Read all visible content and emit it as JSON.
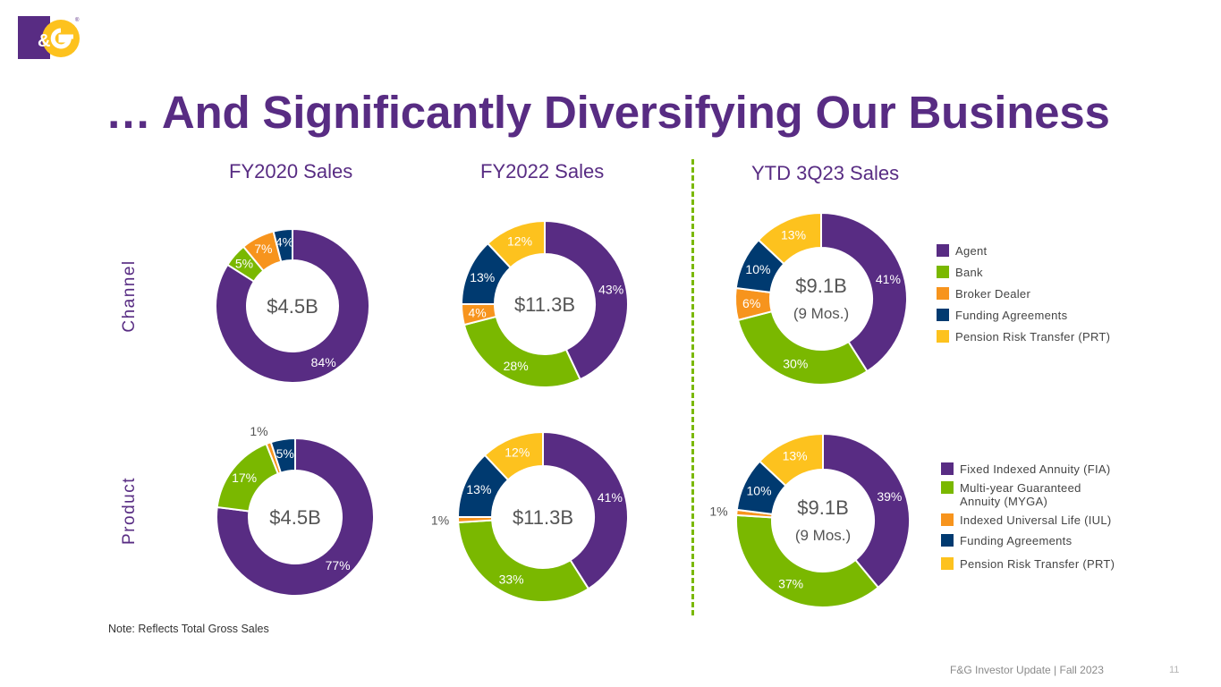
{
  "title": "… And Significantly Diversifying Our Business",
  "logo": {
    "alt": "F&G"
  },
  "column_headers": [
    "FY2020 Sales",
    "FY2022 Sales",
    "YTD 3Q23 Sales"
  ],
  "row_labels": [
    "Channel",
    "Product"
  ],
  "colors": {
    "purple": "#582c83",
    "green": "#7ab800",
    "orange": "#f7941d",
    "navy": "#003a70",
    "yellow": "#fdc21e",
    "center_text": "#555555",
    "divider": "#7ab800"
  },
  "legend_channel": [
    {
      "label": "Agent",
      "color": "#582c83"
    },
    {
      "label": "Bank",
      "color": "#7ab800"
    },
    {
      "label": "Broker Dealer",
      "color": "#f7941d"
    },
    {
      "label": "Funding Agreements",
      "color": "#003a70"
    },
    {
      "label": "Pension Risk Transfer (PRT)",
      "color": "#fdc21e"
    }
  ],
  "legend_product": [
    {
      "label": "Fixed Indexed Annuity  (FIA)",
      "color": "#582c83"
    },
    {
      "label": "Multi-year Guaranteed Annuity  (MYGA)",
      "color": "#7ab800"
    },
    {
      "label": "Indexed Universal Life (IUL)",
      "color": "#f7941d"
    },
    {
      "label": "Funding Agreements",
      "color": "#003a70"
    },
    {
      "label": "Pension Risk Transfer (PRT)",
      "color": "#fdc21e"
    }
  ],
  "chart_data": [
    {
      "type": "pie",
      "subtype": "donut",
      "title": "FY2020 Sales - Channel",
      "center": "$4.5B",
      "center_sub": "",
      "categories": [
        "Agent",
        "Bank",
        "Broker Dealer",
        "Funding Agreements",
        "Pension Risk Transfer (PRT)"
      ],
      "values": [
        84,
        5,
        7,
        4,
        0
      ],
      "labels": [
        "84%",
        "5%",
        "7%",
        "4%",
        ""
      ]
    },
    {
      "type": "pie",
      "subtype": "donut",
      "title": "FY2022 Sales - Channel",
      "center": "$11.3B",
      "center_sub": "",
      "categories": [
        "Agent",
        "Bank",
        "Broker Dealer",
        "Funding Agreements",
        "Pension Risk Transfer (PRT)"
      ],
      "values": [
        43,
        28,
        4,
        13,
        12
      ],
      "labels": [
        "43%",
        "28%",
        "4%",
        "13%",
        "12%"
      ]
    },
    {
      "type": "pie",
      "subtype": "donut",
      "title": "YTD 3Q23 Sales - Channel",
      "center": "$9.1B",
      "center_sub": "(9 Mos.)",
      "categories": [
        "Agent",
        "Bank",
        "Broker Dealer",
        "Funding Agreements",
        "Pension Risk Transfer (PRT)"
      ],
      "values": [
        41,
        30,
        6,
        10,
        13
      ],
      "labels": [
        "41%",
        "30%",
        "6%",
        "10%",
        "13%"
      ]
    },
    {
      "type": "pie",
      "subtype": "donut",
      "title": "FY2020 Sales - Product",
      "center": "$4.5B",
      "center_sub": "",
      "categories": [
        "Fixed Indexed Annuity (FIA)",
        "Multi-year Guaranteed Annuity (MYGA)",
        "Indexed Universal Life (IUL)",
        "Funding Agreements",
        "Pension Risk Transfer (PRT)"
      ],
      "values": [
        77,
        17,
        1,
        5,
        0
      ],
      "labels": [
        "77%",
        "17%",
        "1%",
        "5%",
        ""
      ]
    },
    {
      "type": "pie",
      "subtype": "donut",
      "title": "FY2022 Sales - Product",
      "center": "$11.3B",
      "center_sub": "",
      "categories": [
        "Fixed Indexed Annuity (FIA)",
        "Multi-year Guaranteed Annuity (MYGA)",
        "Indexed Universal Life (IUL)",
        "Funding Agreements",
        "Pension Risk Transfer (PRT)"
      ],
      "values": [
        41,
        33,
        1,
        13,
        12
      ],
      "labels": [
        "41%",
        "33%",
        "1%",
        "13%",
        "12%"
      ]
    },
    {
      "type": "pie",
      "subtype": "donut",
      "title": "YTD 3Q23 Sales - Product",
      "center": "$9.1B",
      "center_sub": "(9 Mos.)",
      "categories": [
        "Fixed Indexed Annuity (FIA)",
        "Multi-year Guaranteed Annuity (MYGA)",
        "Indexed Universal Life (IUL)",
        "Funding Agreements",
        "Pension Risk Transfer (PRT)"
      ],
      "values": [
        39,
        37,
        1,
        10,
        13
      ],
      "labels": [
        "39%",
        "37%",
        "1%",
        "10%",
        "13%"
      ]
    }
  ],
  "note": "Note:  Reflects Total Gross Sales",
  "footer": "F&G Investor Update  | Fall 2023",
  "page_number": "11"
}
